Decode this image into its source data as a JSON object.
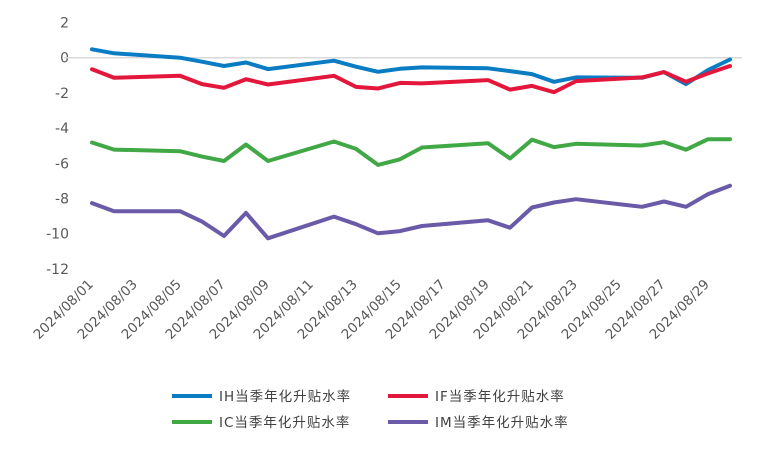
{
  "chart_data": {
    "type": "line",
    "title": "",
    "xlabel": "",
    "ylabel": "",
    "ylim": [
      -12,
      2
    ],
    "yticks": [
      2,
      0,
      -2,
      -4,
      -6,
      -8,
      -10,
      -12
    ],
    "ytick_labels": [
      "2",
      "0",
      "-2",
      "-4",
      "-6",
      "-8",
      "-10",
      "-12"
    ],
    "xlim": [
      "2024/08/01",
      "2024/08/30"
    ],
    "xtick_labels": [
      "2024/08/01",
      "2024/08/03",
      "2024/08/05",
      "2024/08/07",
      "2024/08/09",
      "2024/08/11",
      "2024/08/13",
      "2024/08/15",
      "2024/08/17",
      "2024/08/19",
      "2024/08/21",
      "2024/08/23",
      "2024/08/25",
      "2024/08/27",
      "2024/08/29"
    ],
    "grid": false,
    "legend_position": "bottom",
    "x_days": [
      1,
      2,
      5,
      6,
      7,
      8,
      9,
      12,
      13,
      14,
      15,
      16,
      19,
      20,
      21,
      22,
      23,
      26,
      27,
      28,
      29,
      30
    ],
    "series": [
      {
        "name": "IH当季年化升贴水率",
        "color": "#0a7cc4",
        "values": [
          0.48,
          0.25,
          0.0,
          -0.23,
          -0.47,
          -0.27,
          -0.65,
          -0.17,
          -0.51,
          -0.8,
          -0.63,
          -0.55,
          -0.6,
          -0.76,
          -0.93,
          -1.37,
          -1.12,
          -1.14,
          -0.82,
          -1.5,
          -0.7,
          -0.1
        ]
      },
      {
        "name": "IF当季年化升贴水率",
        "color": "#e3173c",
        "values": [
          -0.66,
          -1.14,
          -1.03,
          -1.5,
          -1.71,
          -1.22,
          -1.52,
          -1.03,
          -1.66,
          -1.75,
          -1.43,
          -1.46,
          -1.27,
          -1.81,
          -1.6,
          -1.96,
          -1.33,
          -1.12,
          -0.82,
          -1.37,
          -0.89,
          -0.47
        ]
      },
      {
        "name": "IC当季年化升贴水率",
        "color": "#41a846",
        "values": [
          -4.82,
          -5.22,
          -5.31,
          -5.62,
          -5.87,
          -4.93,
          -5.87,
          -4.76,
          -5.18,
          -6.09,
          -5.77,
          -5.1,
          -4.86,
          -5.73,
          -4.66,
          -5.08,
          -4.89,
          -4.99,
          -4.8,
          -5.23,
          -4.63,
          -4.63
        ]
      },
      {
        "name": "IM当季年化升贴水率",
        "color": "#6a5aa8",
        "values": [
          -8.26,
          -8.72,
          -8.72,
          -9.31,
          -10.13,
          -8.82,
          -10.26,
          -9.03,
          -9.46,
          -9.98,
          -9.85,
          -9.56,
          -9.24,
          -9.66,
          -8.51,
          -8.23,
          -8.04,
          -8.47,
          -8.17,
          -8.47,
          -7.75,
          -7.27
        ]
      }
    ]
  }
}
